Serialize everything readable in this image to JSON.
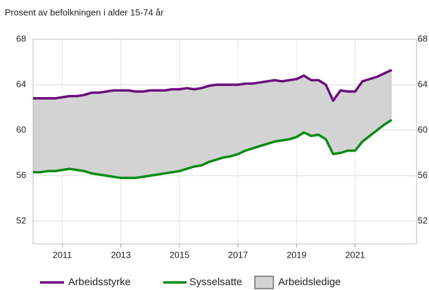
{
  "chart_data": {
    "type": "line",
    "subtitle": "Prosent av befolkningen i alder 15-74 år",
    "x": [
      2010,
      2010.25,
      2010.5,
      2010.75,
      2011,
      2011.25,
      2011.5,
      2011.75,
      2012,
      2012.25,
      2012.5,
      2012.75,
      2013,
      2013.25,
      2013.5,
      2013.75,
      2014,
      2014.25,
      2014.5,
      2014.75,
      2015,
      2015.25,
      2015.5,
      2015.75,
      2016,
      2016.25,
      2016.5,
      2016.75,
      2017,
      2017.25,
      2017.5,
      2017.75,
      2018,
      2018.25,
      2018.5,
      2018.75,
      2019,
      2019.25,
      2019.5,
      2019.75,
      2020,
      2020.25,
      2020.5,
      2020.75,
      2021,
      2021.25,
      2021.5,
      2021.75,
      2022,
      2022.25
    ],
    "series": [
      {
        "name": "Arbeidsstyrke",
        "color": "#6a0d7a",
        "values": [
          62.8,
          62.8,
          62.8,
          62.8,
          62.9,
          63.0,
          63.0,
          63.1,
          63.3,
          63.3,
          63.4,
          63.5,
          63.5,
          63.5,
          63.4,
          63.4,
          63.5,
          63.5,
          63.5,
          63.6,
          63.6,
          63.7,
          63.6,
          63.7,
          63.9,
          64.0,
          64.0,
          64.0,
          64.0,
          64.1,
          64.1,
          64.2,
          64.3,
          64.4,
          64.3,
          64.4,
          64.5,
          64.8,
          64.4,
          64.4,
          64.0,
          62.6,
          63.5,
          63.4,
          63.4,
          64.3,
          64.5,
          64.7,
          65.0,
          65.3
        ]
      },
      {
        "name": "Sysselsatte",
        "color": "#0a8a14",
        "values": [
          56.3,
          56.3,
          56.4,
          56.4,
          56.5,
          56.6,
          56.5,
          56.4,
          56.2,
          56.1,
          56.0,
          55.9,
          55.8,
          55.8,
          55.8,
          55.9,
          56.0,
          56.1,
          56.2,
          56.3,
          56.4,
          56.6,
          56.8,
          56.9,
          57.2,
          57.4,
          57.6,
          57.7,
          57.9,
          58.2,
          58.4,
          58.6,
          58.8,
          59.0,
          59.1,
          59.2,
          59.4,
          59.8,
          59.5,
          59.6,
          59.2,
          57.9,
          58.0,
          58.2,
          58.2,
          59.0,
          59.5,
          60.0,
          60.5,
          60.9
        ]
      }
    ],
    "band": {
      "name": "Arbeidsledige",
      "color": "#d3d3d3"
    },
    "xlim": [
      2010,
      2023.1
    ],
    "xticks": [
      2011,
      2013,
      2015,
      2017,
      2019,
      2021
    ],
    "ylim": [
      50,
      68
    ],
    "yticks": [
      52,
      56,
      60,
      64,
      68
    ],
    "y2lim": [
      50,
      68
    ],
    "y2ticks": [
      52,
      56,
      60,
      64,
      68
    ],
    "grid": true
  }
}
